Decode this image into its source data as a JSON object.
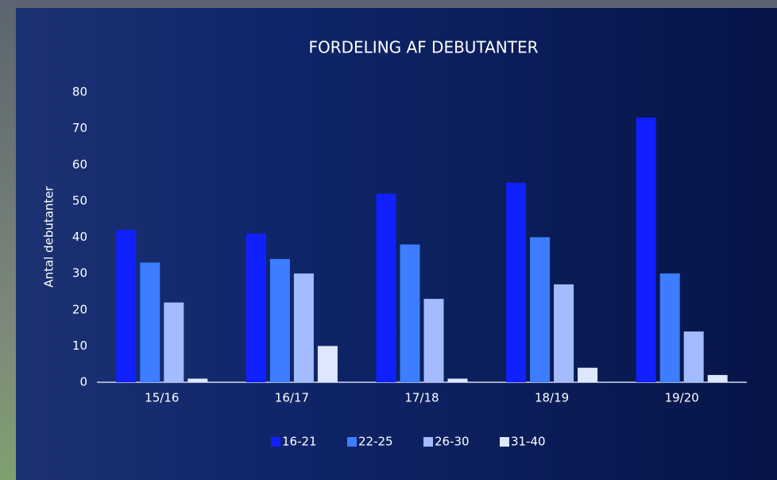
{
  "chart_data": {
    "type": "bar",
    "title": "FORDELING AF DEBUTANTER",
    "y_label": "Antal debutanter",
    "categories": [
      "15/16",
      "16/17",
      "17/18",
      "18/19",
      "19/20"
    ],
    "series": [
      {
        "name": "16-21",
        "color": "#1020ff",
        "values": [
          42,
          41,
          52,
          55,
          73
        ]
      },
      {
        "name": "22-25",
        "color": "#3d7dff",
        "values": [
          33,
          34,
          38,
          40,
          30
        ]
      },
      {
        "name": "26-30",
        "color": "#a3bcff",
        "values": [
          22,
          30,
          23,
          27,
          14
        ]
      },
      {
        "name": "31-40",
        "color": "#dfe7ff",
        "values": [
          1,
          10,
          1,
          4,
          2
        ]
      }
    ],
    "ylim": [
      0,
      80
    ],
    "yticks": [
      0,
      10,
      20,
      30,
      40,
      50,
      60,
      70,
      80
    ],
    "grid": false,
    "legend": "bottom"
  }
}
